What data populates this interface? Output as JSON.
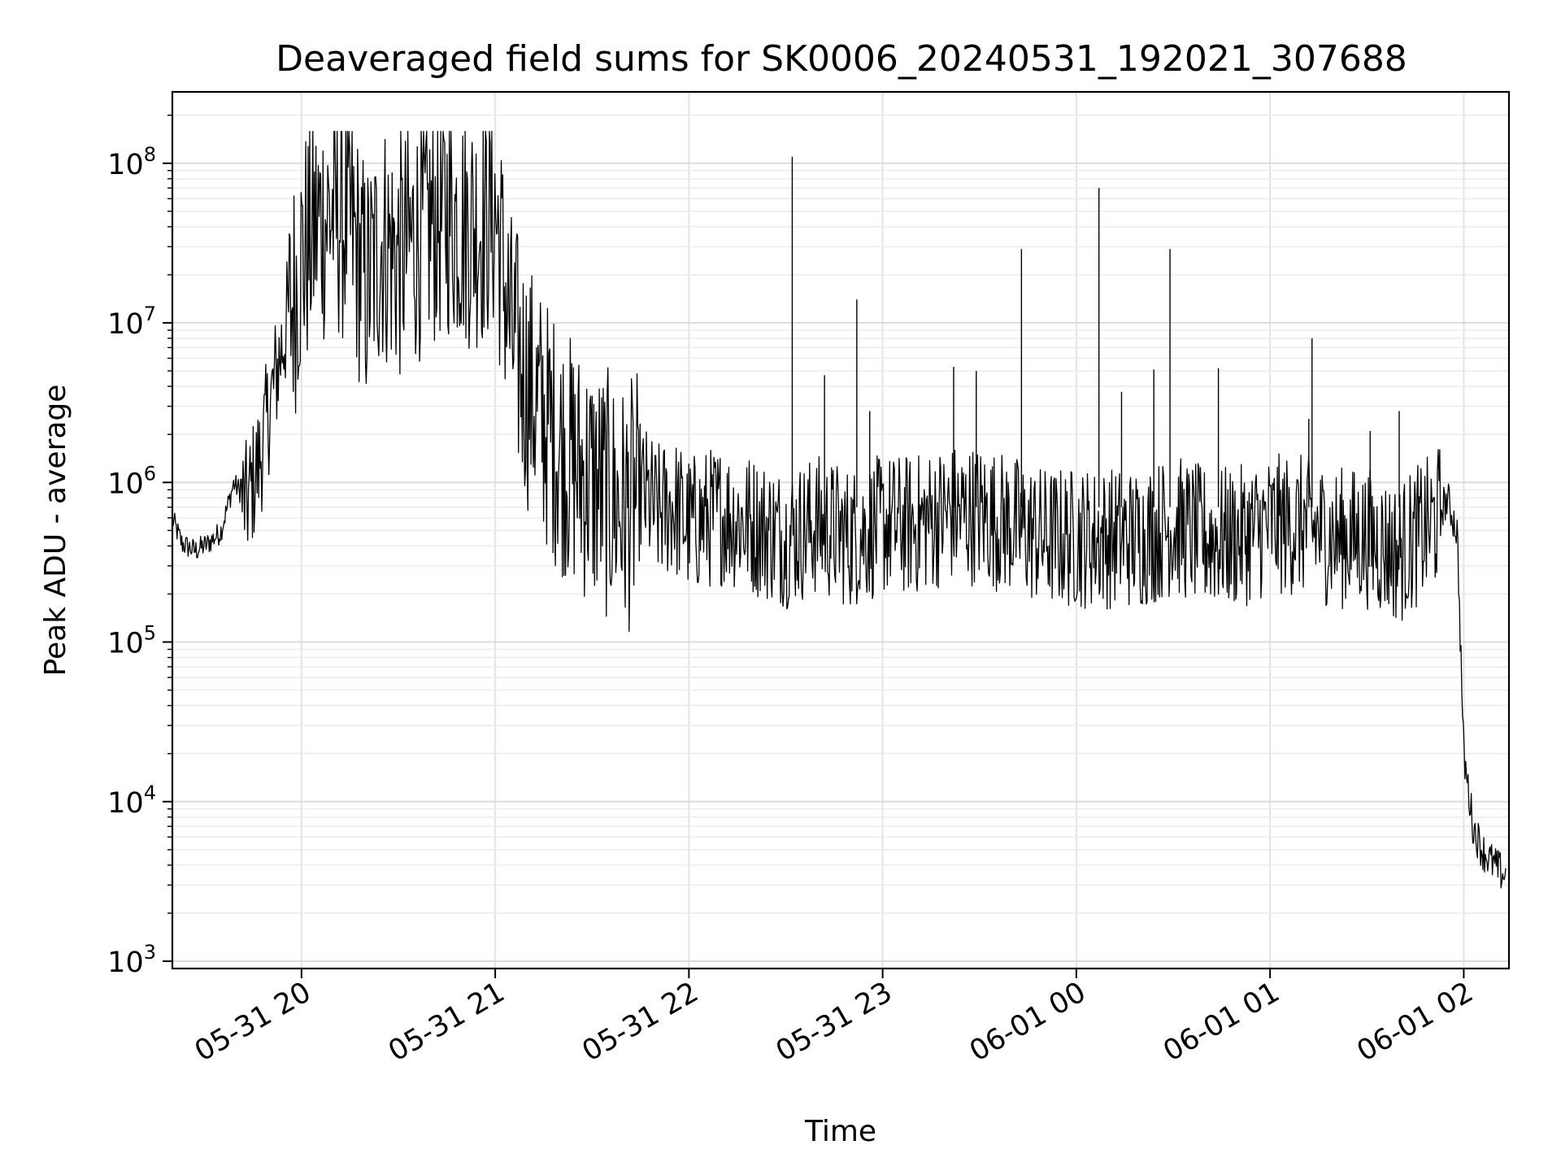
{
  "chart_data": {
    "type": "line",
    "title": "Deaveraged field sums for SK0006_20240531_192021_307688",
    "xlabel": "Time",
    "ylabel": "Peak ADU - average",
    "yscale": "log",
    "xlim": [
      "2024-05-31 19:20",
      "2024-06-01 02:14"
    ],
    "ylim": [
      900,
      280000000
    ],
    "grid": "on (major and minor)",
    "x_ticks": [
      {
        "t": "2024-05-31 20:00",
        "label": "05-31 20"
      },
      {
        "t": "2024-05-31 21:00",
        "label": "05-31 21"
      },
      {
        "t": "2024-05-31 22:00",
        "label": "05-31 22"
      },
      {
        "t": "2024-05-31 23:00",
        "label": "05-31 23"
      },
      {
        "t": "2024-06-01 00:00",
        "label": "06-01 00"
      },
      {
        "t": "2024-06-01 01:00",
        "label": "06-01 01"
      },
      {
        "t": "2024-06-01 02:00",
        "label": "06-01 02"
      }
    ],
    "y_ticks": [
      {
        "value": 1000,
        "base": "10",
        "exp": "3"
      },
      {
        "value": 10000,
        "base": "10",
        "exp": "4"
      },
      {
        "value": 100000,
        "base": "10",
        "exp": "5"
      },
      {
        "value": 1000000,
        "base": "10",
        "exp": "6"
      },
      {
        "value": 10000000,
        "base": "10",
        "exp": "7"
      },
      {
        "value": 100000000,
        "base": "10",
        "exp": "8"
      }
    ],
    "series": [
      {
        "color": "#000000",
        "x": [
          "2024-05-31 19:20",
          "2024-05-31 19:23",
          "2024-05-31 19:27",
          "2024-05-31 19:31",
          "2024-05-31 19:35",
          "2024-05-31 19:39",
          "2024-05-31 19:43",
          "2024-05-31 19:47",
          "2024-05-31 19:51",
          "2024-05-31 19:55",
          "2024-05-31 20:00",
          "2024-05-31 20:05",
          "2024-05-31 20:10",
          "2024-05-31 20:15",
          "2024-05-31 20:20",
          "2024-05-31 20:25",
          "2024-05-31 20:30",
          "2024-05-31 20:35",
          "2024-05-31 20:40",
          "2024-05-31 20:45",
          "2024-05-31 20:50",
          "2024-05-31 20:55",
          "2024-05-31 21:00",
          "2024-05-31 21:05",
          "2024-05-31 21:10",
          "2024-05-31 21:15",
          "2024-05-31 21:20",
          "2024-05-31 21:25",
          "2024-05-31 21:30",
          "2024-05-31 21:35",
          "2024-05-31 21:40",
          "2024-05-31 21:45",
          "2024-05-31 21:50",
          "2024-05-31 21:55",
          "2024-05-31 22:00",
          "2024-05-31 22:10",
          "2024-05-31 22:20",
          "2024-05-31 22:30",
          "2024-05-31 22:40",
          "2024-05-31 22:50",
          "2024-05-31 23:00",
          "2024-05-31 23:10",
          "2024-05-31 23:20",
          "2024-05-31 23:30",
          "2024-05-31 23:40",
          "2024-05-31 23:50",
          "2024-06-01 00:00",
          "2024-06-01 00:10",
          "2024-06-01 00:20",
          "2024-06-01 00:30",
          "2024-06-01 00:40",
          "2024-06-01 00:50",
          "2024-06-01 01:00",
          "2024-06-01 01:10",
          "2024-06-01 01:20",
          "2024-06-01 01:30",
          "2024-06-01 01:40",
          "2024-06-01 01:45",
          "2024-06-01 01:50",
          "2024-06-01 01:55",
          "2024-06-01 01:58",
          "2024-06-01 02:00",
          "2024-06-01 02:03",
          "2024-06-01 02:06",
          "2024-06-01 02:10",
          "2024-06-01 02:13"
        ],
        "y": [
          600000,
          420000,
          380000,
          420000,
          500000,
          1000000,
          800000,
          1500000,
          4000000,
          10000000,
          30000000,
          50000000,
          60000000,
          50000000,
          20000000,
          40000000,
          30000000,
          40000000,
          50000000,
          60000000,
          50000000,
          50000000,
          60000000,
          10000000,
          5000000,
          3000000,
          2000000,
          1500000,
          1200000,
          1000000,
          800000,
          1000000,
          700000,
          800000,
          600000,
          700000,
          600000,
          500000,
          600000,
          500000,
          600000,
          600000,
          700000,
          700000,
          600000,
          500000,
          500000,
          500000,
          500000,
          600000,
          500000,
          500000,
          600000,
          600000,
          500000,
          500000,
          400000,
          500000,
          600000,
          800000,
          500000,
          20000,
          7000,
          5000,
          4000,
          3500
        ]
      }
    ],
    "spikes": [
      {
        "x": "2024-05-31 22:32",
        "y": 110000000
      },
      {
        "x": "2024-05-31 22:42",
        "y": 4700000
      },
      {
        "x": "2024-05-31 22:52",
        "y": 14000000
      },
      {
        "x": "2024-05-31 22:56",
        "y": 2800000
      },
      {
        "x": "2024-05-31 23:22",
        "y": 5300000
      },
      {
        "x": "2024-05-31 23:29",
        "y": 5000000
      },
      {
        "x": "2024-05-31 23:43",
        "y": 29000000
      },
      {
        "x": "2024-06-01 00:07",
        "y": 70000000
      },
      {
        "x": "2024-06-01 00:14",
        "y": 3700000
      },
      {
        "x": "2024-06-01 00:24",
        "y": 5100000
      },
      {
        "x": "2024-06-01 00:29",
        "y": 29000000
      },
      {
        "x": "2024-06-01 00:44",
        "y": 5200000
      },
      {
        "x": "2024-06-01 01:12",
        "y": 2500000
      },
      {
        "x": "2024-06-01 01:13",
        "y": 8000000
      },
      {
        "x": "2024-06-01 01:31",
        "y": 2100000
      },
      {
        "x": "2024-06-01 01:40",
        "y": 2800000
      }
    ]
  }
}
